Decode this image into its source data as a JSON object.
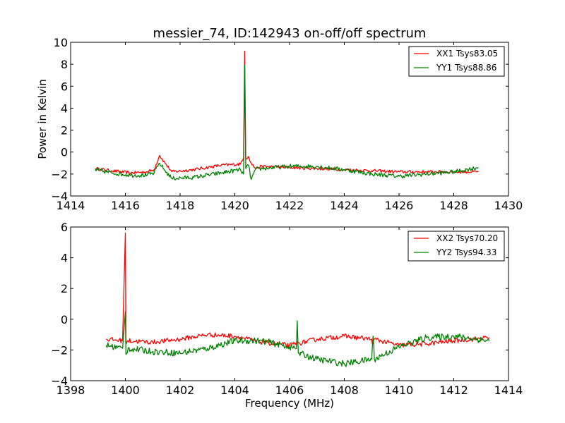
{
  "chart_data": [
    {
      "type": "line",
      "title": "messier_74, ID:142943 on-off/off spectrum",
      "xlabel": "",
      "ylabel": "Power in Kelvin",
      "xlim": [
        1414,
        1430
      ],
      "ylim": [
        -4,
        10
      ],
      "xticks": [
        1414,
        1416,
        1418,
        1420,
        1422,
        1424,
        1426,
        1428,
        1430
      ],
      "yticks": [
        -4,
        -2,
        0,
        2,
        4,
        6,
        8,
        10
      ],
      "xtick_labels": [
        "1414",
        "1416",
        "1418",
        "1420",
        "1422",
        "1424",
        "1426",
        "1428",
        "1430"
      ],
      "ytick_labels": [
        "−4",
        "−2",
        "0",
        "2",
        "4",
        "6",
        "8",
        "10"
      ],
      "grid": false,
      "legend_position": "top-right",
      "series": [
        {
          "name": "XX1 Tsys83.05",
          "color": "#ff0000",
          "x": [
            1414.9,
            1415.5,
            1416.2,
            1416.8,
            1417.05,
            1417.25,
            1417.45,
            1417.7,
            1418.5,
            1419.5,
            1420.2,
            1420.32,
            1420.36,
            1420.4,
            1420.5,
            1420.6,
            1420.75,
            1421.0,
            1422.0,
            1423.0,
            1424.0,
            1425.0,
            1426.0,
            1427.0,
            1428.0,
            1428.9
          ],
          "y": [
            -1.5,
            -1.7,
            -1.9,
            -1.8,
            -1.6,
            -0.3,
            -1.0,
            -1.8,
            -1.6,
            -1.2,
            -1.1,
            -0.5,
            9.2,
            -0.6,
            -0.4,
            -1.0,
            -1.5,
            -1.3,
            -1.4,
            -1.5,
            -1.6,
            -1.7,
            -1.8,
            -1.8,
            -1.8,
            -1.8
          ]
        },
        {
          "name": "YY1 Tsys88.86",
          "color": "#008000",
          "x": [
            1414.9,
            1415.5,
            1416.2,
            1416.8,
            1417.05,
            1417.25,
            1417.45,
            1417.7,
            1418.5,
            1419.5,
            1420.2,
            1420.32,
            1420.36,
            1420.4,
            1420.5,
            1420.6,
            1420.75,
            1421.0,
            1422.0,
            1423.0,
            1424.0,
            1425.0,
            1426.0,
            1427.0,
            1428.0,
            1428.9
          ],
          "y": [
            -1.6,
            -1.9,
            -2.1,
            -2.1,
            -1.9,
            -1.0,
            -1.7,
            -2.4,
            -2.3,
            -1.9,
            -1.6,
            -2.0,
            7.9,
            -1.5,
            -1.2,
            -2.5,
            -1.6,
            -1.5,
            -1.3,
            -1.3,
            -1.6,
            -2.0,
            -2.2,
            -2.0,
            -1.8,
            -1.4
          ]
        }
      ]
    },
    {
      "type": "line",
      "title": "",
      "xlabel": "Frequency (MHz)",
      "ylabel": "",
      "xlim": [
        1398,
        1414
      ],
      "ylim": [
        -4,
        6
      ],
      "xticks": [
        1398,
        1400,
        1402,
        1404,
        1406,
        1408,
        1410,
        1412,
        1414
      ],
      "yticks": [
        -4,
        -2,
        0,
        2,
        4,
        6
      ],
      "xtick_labels": [
        "1398",
        "1400",
        "1402",
        "1404",
        "1406",
        "1408",
        "1410",
        "1412",
        "1414"
      ],
      "ytick_labels": [
        "−4",
        "−2",
        "0",
        "2",
        "4",
        "6"
      ],
      "grid": false,
      "legend_position": "top-right",
      "series": [
        {
          "name": "XX2 Tsys70.20",
          "color": "#ff0000",
          "x": [
            1399.3,
            1399.9,
            1400.0,
            1400.02,
            1400.1,
            1401.0,
            1402.0,
            1403.0,
            1404.0,
            1405.0,
            1406.0,
            1407.0,
            1408.0,
            1409.0,
            1409.05,
            1409.1,
            1410.0,
            1411.0,
            1412.0,
            1413.3
          ],
          "y": [
            -1.3,
            -1.4,
            5.6,
            -1.5,
            -1.4,
            -1.5,
            -1.3,
            -1.0,
            -1.1,
            -1.5,
            -1.7,
            -1.3,
            -1.1,
            -1.3,
            -1.6,
            -1.3,
            -1.7,
            -1.6,
            -1.4,
            -1.2
          ]
        },
        {
          "name": "YY2 Tsys94.33",
          "color": "#008000",
          "x": [
            1399.3,
            1399.9,
            1400.0,
            1400.02,
            1400.1,
            1401.0,
            1402.0,
            1403.0,
            1404.0,
            1405.0,
            1406.0,
            1406.25,
            1406.28,
            1406.32,
            1407.0,
            1408.0,
            1409.0,
            1409.05,
            1409.1,
            1410.0,
            1411.0,
            1412.0,
            1413.3
          ],
          "y": [
            -1.7,
            -1.9,
            0.5,
            -2.3,
            -1.9,
            -2.1,
            -2.2,
            -1.9,
            -1.4,
            -1.4,
            -1.8,
            -1.9,
            -0.1,
            -2.2,
            -2.6,
            -2.9,
            -2.6,
            -1.1,
            -2.6,
            -1.8,
            -1.2,
            -1.1,
            -1.4
          ]
        }
      ]
    }
  ]
}
